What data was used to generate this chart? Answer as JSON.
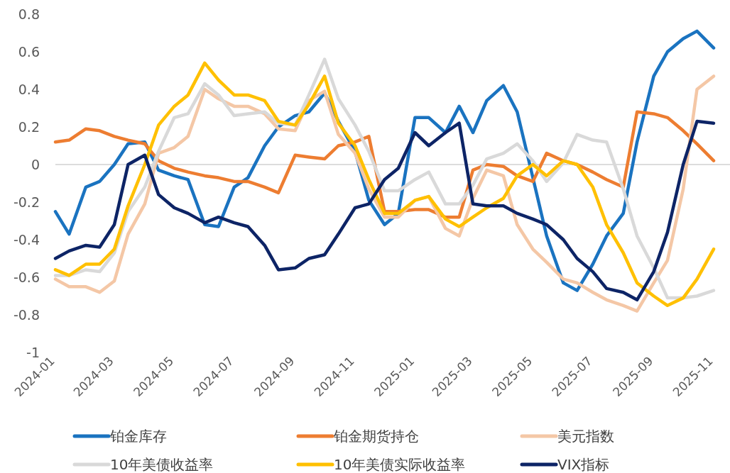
{
  "chart_data": {
    "type": "line",
    "x": [
      "2024-01-01",
      "2024-01-15",
      "2024-02-01",
      "2024-02-15",
      "2024-03-01",
      "2024-03-15",
      "2024-04-01",
      "2024-04-15",
      "2024-05-01",
      "2024-05-15",
      "2024-06-01",
      "2024-06-15",
      "2024-07-01",
      "2024-07-15",
      "2024-08-01",
      "2024-08-15",
      "2024-09-01",
      "2024-09-15",
      "2024-10-01",
      "2024-10-15",
      "2024-11-01",
      "2024-11-15",
      "2024-12-01",
      "2024-12-15",
      "2025-01-01",
      "2025-01-15",
      "2025-02-01",
      "2025-02-15",
      "2025-03-01",
      "2025-03-15",
      "2025-04-01",
      "2025-04-15",
      "2025-05-01",
      "2025-05-15",
      "2025-06-01",
      "2025-06-15",
      "2025-07-01",
      "2025-07-15",
      "2025-08-01",
      "2025-08-15",
      "2025-09-01",
      "2025-09-15",
      "2025-10-01",
      "2025-10-15",
      "2025-11-01"
    ],
    "xlim": [
      "2024-01-01",
      "2025-11-01"
    ],
    "xticks": [
      "2024-01",
      "2024-03",
      "2024-05",
      "2024-07",
      "2024-09",
      "2024-11",
      "2025-01",
      "2025-03",
      "2025-05",
      "2025-07",
      "2025-09",
      "2025-11"
    ],
    "ylim": [
      -1,
      0.8
    ],
    "yticks": [
      -1,
      -0.8,
      -0.6,
      -0.4,
      -0.2,
      0,
      0.2,
      0.4,
      0.6,
      0.8
    ],
    "legend": "bottom",
    "series": [
      {
        "name": "铂金库存",
        "color": "#1a73c0",
        "values": [
          -0.25,
          -0.37,
          -0.12,
          -0.09,
          0.0,
          0.11,
          0.12,
          -0.03,
          -0.06,
          -0.08,
          -0.32,
          -0.33,
          -0.12,
          -0.07,
          0.1,
          0.2,
          0.26,
          0.28,
          0.38,
          0.23,
          0.07,
          -0.19,
          -0.32,
          -0.26,
          0.25,
          0.25,
          0.17,
          0.31,
          0.17,
          0.34,
          0.42,
          0.28,
          -0.07,
          -0.38,
          -0.63,
          -0.67,
          -0.53,
          -0.38,
          -0.26,
          0.12,
          0.47,
          0.6,
          0.67,
          0.71,
          0.62
        ]
      },
      {
        "name": "铂金期货持仓",
        "color": "#ed7d31",
        "values": [
          0.12,
          0.13,
          0.19,
          0.18,
          0.15,
          0.13,
          0.11,
          0.02,
          -0.02,
          -0.04,
          -0.06,
          -0.07,
          -0.09,
          -0.09,
          -0.12,
          -0.15,
          0.05,
          0.04,
          0.03,
          0.1,
          0.12,
          0.15,
          -0.25,
          -0.25,
          -0.24,
          -0.24,
          -0.28,
          -0.28,
          -0.03,
          0.0,
          -0.01,
          -0.06,
          -0.09,
          0.06,
          0.02,
          0.0,
          -0.04,
          -0.08,
          -0.12,
          0.28,
          0.27,
          0.25,
          0.18,
          0.11,
          0.02
        ]
      },
      {
        "name": "美元指数",
        "color": "#f4c7a6",
        "values": [
          -0.61,
          -0.65,
          -0.65,
          -0.68,
          -0.62,
          -0.37,
          -0.21,
          0.06,
          0.09,
          0.15,
          0.4,
          0.35,
          0.31,
          0.31,
          0.27,
          0.19,
          0.18,
          0.34,
          0.39,
          0.16,
          0.06,
          -0.13,
          -0.28,
          -0.28,
          -0.19,
          -0.17,
          -0.34,
          -0.38,
          -0.18,
          -0.03,
          -0.06,
          -0.32,
          -0.45,
          -0.52,
          -0.61,
          -0.63,
          -0.68,
          -0.72,
          -0.75,
          -0.78,
          -0.63,
          -0.51,
          -0.13,
          0.4,
          0.47
        ]
      },
      {
        "name": "10年美债收益率",
        "color": "#d9d9d9",
        "values": [
          -0.59,
          -0.59,
          -0.56,
          -0.57,
          -0.47,
          -0.25,
          -0.12,
          0.07,
          0.25,
          0.27,
          0.43,
          0.37,
          0.26,
          0.27,
          0.28,
          0.22,
          0.21,
          0.37,
          0.56,
          0.35,
          0.21,
          0.07,
          -0.14,
          -0.14,
          -0.08,
          -0.04,
          -0.21,
          -0.21,
          -0.11,
          0.03,
          0.06,
          0.11,
          0.02,
          -0.09,
          0.01,
          0.16,
          0.13,
          0.12,
          -0.13,
          -0.38,
          -0.55,
          -0.71,
          -0.71,
          -0.7,
          -0.67
        ]
      },
      {
        "name": "10年美债实际收益率",
        "color": "#ffc000",
        "values": [
          -0.56,
          -0.59,
          -0.53,
          -0.53,
          -0.45,
          -0.22,
          0.0,
          0.21,
          0.31,
          0.37,
          0.54,
          0.45,
          0.37,
          0.37,
          0.34,
          0.23,
          0.21,
          0.32,
          0.47,
          0.22,
          0.1,
          -0.08,
          -0.26,
          -0.26,
          -0.19,
          -0.17,
          -0.29,
          -0.33,
          -0.28,
          -0.23,
          -0.18,
          -0.06,
          0.0,
          -0.06,
          0.02,
          0.0,
          -0.12,
          -0.32,
          -0.47,
          -0.63,
          -0.7,
          -0.75,
          -0.71,
          -0.61,
          -0.45
        ]
      },
      {
        "name": "VIX指标",
        "color": "#0d2466",
        "values": [
          -0.5,
          -0.46,
          -0.43,
          -0.44,
          -0.32,
          0.0,
          0.05,
          -0.16,
          -0.23,
          -0.26,
          -0.31,
          -0.28,
          -0.31,
          -0.33,
          -0.43,
          -0.56,
          -0.55,
          -0.5,
          -0.48,
          -0.37,
          -0.23,
          -0.21,
          -0.08,
          -0.02,
          0.17,
          0.1,
          0.17,
          0.22,
          -0.21,
          -0.22,
          -0.22,
          -0.26,
          -0.29,
          -0.32,
          -0.4,
          -0.5,
          -0.57,
          -0.66,
          -0.68,
          -0.72,
          -0.57,
          -0.36,
          0.0,
          0.23,
          0.22
        ]
      }
    ]
  }
}
